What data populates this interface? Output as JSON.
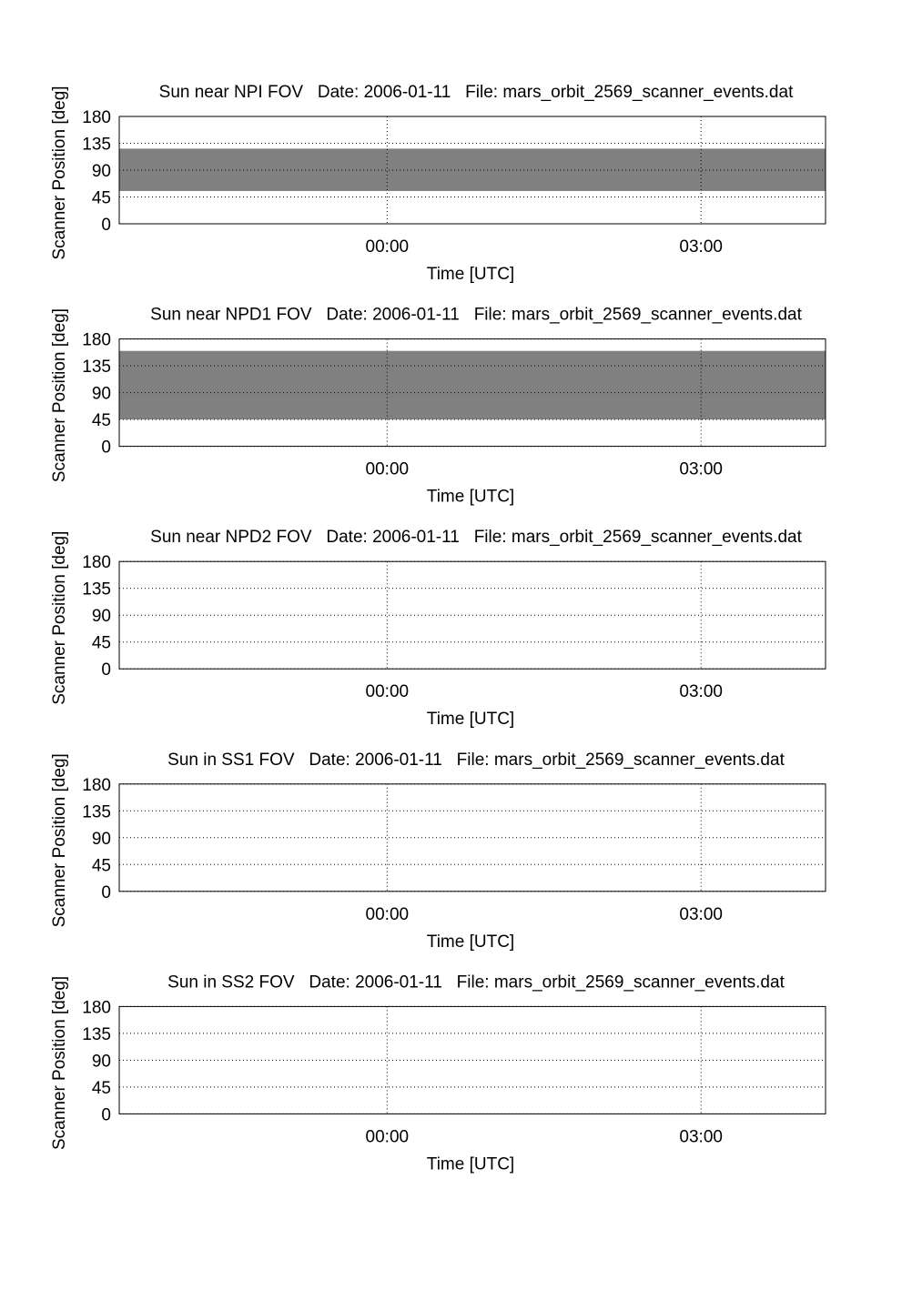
{
  "chart_data": [
    {
      "type": "band",
      "title": "Sun near NPI FOV   Date: 2006-01-11   File: mars_orbit_2569_scanner_events.dat",
      "y_label": "Scanner Position [deg]",
      "x_label": "Time [UTC]",
      "xlim": [
        -2.56,
        4.19
      ],
      "xticks": [
        {
          "value": 0,
          "label": "00:00"
        },
        {
          "value": 3,
          "label": "03:00"
        }
      ],
      "ylim": [
        0,
        180
      ],
      "yticks": [
        0,
        45,
        90,
        135,
        180
      ],
      "grid": true,
      "color": "#808080",
      "bands": [
        {
          "start": -2.56,
          "end": 4.19,
          "low": 55,
          "high": 126
        }
      ]
    },
    {
      "type": "band",
      "title": "Sun near NPD1 FOV   Date: 2006-01-11   File: mars_orbit_2569_scanner_events.dat",
      "y_label": "Scanner Position [deg]",
      "x_label": "Time [UTC]",
      "xlim": [
        -2.56,
        4.19
      ],
      "xticks": [
        {
          "value": 0,
          "label": "00:00"
        },
        {
          "value": 3,
          "label": "03:00"
        }
      ],
      "ylim": [
        0,
        180
      ],
      "yticks": [
        0,
        45,
        90,
        135,
        180
      ],
      "grid": true,
      "color": "#808080",
      "bands": [
        {
          "start": -2.56,
          "end": 4.19,
          "low": 45,
          "high": 160
        }
      ]
    },
    {
      "type": "band",
      "title": "Sun near NPD2 FOV   Date: 2006-01-11   File: mars_orbit_2569_scanner_events.dat",
      "y_label": "Scanner Position [deg]",
      "x_label": "Time [UTC]",
      "xlim": [
        -2.56,
        4.19
      ],
      "xticks": [
        {
          "value": 0,
          "label": "00:00"
        },
        {
          "value": 3,
          "label": "03:00"
        }
      ],
      "ylim": [
        0,
        180
      ],
      "yticks": [
        0,
        45,
        90,
        135,
        180
      ],
      "grid": true,
      "color": "#808080",
      "bands": []
    },
    {
      "type": "band",
      "title": "Sun in SS1 FOV   Date: 2006-01-11   File: mars_orbit_2569_scanner_events.dat",
      "y_label": "Scanner Position [deg]",
      "x_label": "Time [UTC]",
      "xlim": [
        -2.56,
        4.19
      ],
      "xticks": [
        {
          "value": 0,
          "label": "00:00"
        },
        {
          "value": 3,
          "label": "03:00"
        }
      ],
      "ylim": [
        0,
        180
      ],
      "yticks": [
        0,
        45,
        90,
        135,
        180
      ],
      "grid": true,
      "color": "#808080",
      "bands": []
    },
    {
      "type": "band",
      "title": "Sun in SS2 FOV   Date: 2006-01-11   File: mars_orbit_2569_scanner_events.dat",
      "y_label": "Scanner Position [deg]",
      "x_label": "Time [UTC]",
      "xlim": [
        -2.56,
        4.19
      ],
      "xticks": [
        {
          "value": 0,
          "label": "00:00"
        },
        {
          "value": 3,
          "label": "03:00"
        }
      ],
      "ylim": [
        0,
        180
      ],
      "yticks": [
        0,
        45,
        90,
        135,
        180
      ],
      "grid": true,
      "color": "#808080",
      "bands": []
    }
  ]
}
